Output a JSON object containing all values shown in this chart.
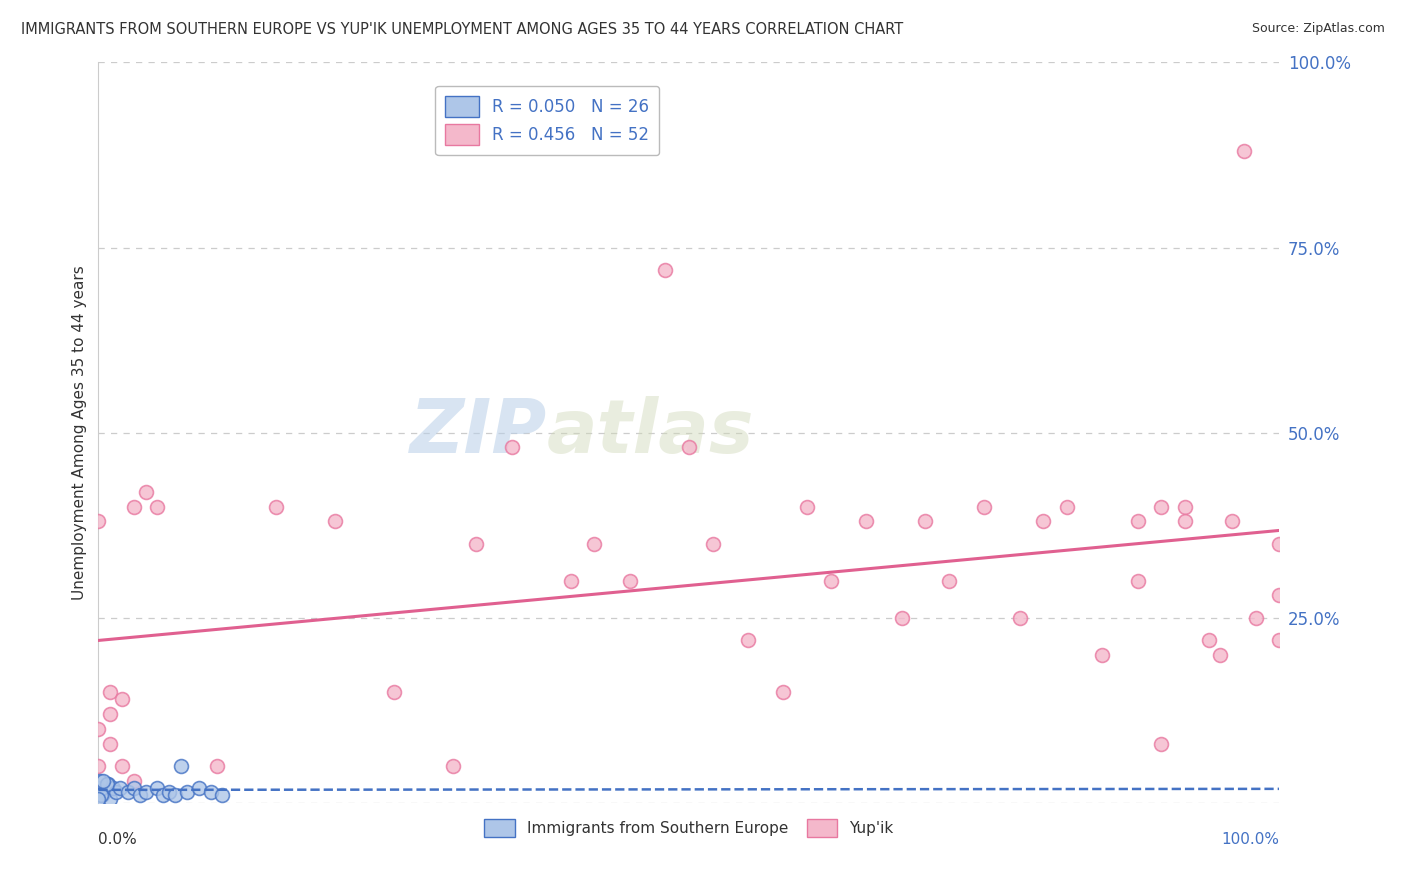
{
  "title": "IMMIGRANTS FROM SOUTHERN EUROPE VS YUP'IK UNEMPLOYMENT AMONG AGES 35 TO 44 YEARS CORRELATION CHART",
  "source": "Source: ZipAtlas.com",
  "ylabel": "Unemployment Among Ages 35 to 44 years",
  "legend_label_blue": "Immigrants from Southern Europe",
  "legend_label_pink": "Yup'ik",
  "R_blue": 0.05,
  "N_blue": 26,
  "R_pink": 0.456,
  "N_pink": 52,
  "blue_face": "#aec6e8",
  "blue_edge": "#4472c4",
  "pink_face": "#f4b8cb",
  "pink_edge": "#e878a0",
  "trend_blue_color": "#4472c4",
  "trend_pink_color": "#e06090",
  "text_color": "#333333",
  "label_color": "#4472c4",
  "grid_color": "#cccccc",
  "blue_scatter": [
    [
      0.0,
      0.02
    ],
    [
      0.005,
      0.015
    ],
    [
      0.008,
      0.025
    ],
    [
      0.003,
      0.01
    ],
    [
      0.001,
      0.03
    ],
    [
      0.01,
      0.005
    ],
    [
      0.012,
      0.02
    ],
    [
      0.015,
      0.015
    ],
    [
      0.007,
      0.025
    ],
    [
      0.002,
      0.01
    ],
    [
      0.0,
      0.005
    ],
    [
      0.004,
      0.03
    ],
    [
      0.018,
      0.02
    ],
    [
      0.025,
      0.015
    ],
    [
      0.03,
      0.02
    ],
    [
      0.035,
      0.01
    ],
    [
      0.04,
      0.015
    ],
    [
      0.05,
      0.02
    ],
    [
      0.055,
      0.01
    ],
    [
      0.06,
      0.015
    ],
    [
      0.065,
      0.01
    ],
    [
      0.07,
      0.05
    ],
    [
      0.075,
      0.015
    ],
    [
      0.085,
      0.02
    ],
    [
      0.095,
      0.015
    ],
    [
      0.105,
      0.01
    ]
  ],
  "pink_scatter": [
    [
      0.0,
      0.38
    ],
    [
      0.0,
      0.1
    ],
    [
      0.0,
      0.05
    ],
    [
      0.01,
      0.15
    ],
    [
      0.01,
      0.12
    ],
    [
      0.01,
      0.08
    ],
    [
      0.02,
      0.14
    ],
    [
      0.02,
      0.05
    ],
    [
      0.03,
      0.4
    ],
    [
      0.03,
      0.03
    ],
    [
      0.04,
      0.42
    ],
    [
      0.05,
      0.4
    ],
    [
      0.1,
      0.05
    ],
    [
      0.15,
      0.4
    ],
    [
      0.2,
      0.38
    ],
    [
      0.25,
      0.15
    ],
    [
      0.3,
      0.05
    ],
    [
      0.32,
      0.35
    ],
    [
      0.35,
      0.48
    ],
    [
      0.4,
      0.3
    ],
    [
      0.42,
      0.35
    ],
    [
      0.45,
      0.3
    ],
    [
      0.48,
      0.72
    ],
    [
      0.5,
      0.48
    ],
    [
      0.52,
      0.35
    ],
    [
      0.55,
      0.22
    ],
    [
      0.58,
      0.15
    ],
    [
      0.6,
      0.4
    ],
    [
      0.62,
      0.3
    ],
    [
      0.65,
      0.38
    ],
    [
      0.68,
      0.25
    ],
    [
      0.7,
      0.38
    ],
    [
      0.72,
      0.3
    ],
    [
      0.75,
      0.4
    ],
    [
      0.78,
      0.25
    ],
    [
      0.8,
      0.38
    ],
    [
      0.82,
      0.4
    ],
    [
      0.85,
      0.2
    ],
    [
      0.88,
      0.38
    ],
    [
      0.88,
      0.3
    ],
    [
      0.9,
      0.08
    ],
    [
      0.9,
      0.4
    ],
    [
      0.92,
      0.4
    ],
    [
      0.92,
      0.38
    ],
    [
      0.94,
      0.22
    ],
    [
      0.95,
      0.2
    ],
    [
      0.96,
      0.38
    ],
    [
      0.97,
      0.88
    ],
    [
      0.98,
      0.25
    ],
    [
      1.0,
      0.35
    ],
    [
      1.0,
      0.28
    ],
    [
      1.0,
      0.22
    ]
  ],
  "yticks": [
    0.0,
    0.25,
    0.5,
    0.75,
    1.0
  ],
  "ytick_labels": [
    "",
    "25.0%",
    "50.0%",
    "75.0%",
    "100.0%"
  ],
  "xlim": [
    0.0,
    1.0
  ],
  "ylim": [
    0.0,
    1.0
  ]
}
